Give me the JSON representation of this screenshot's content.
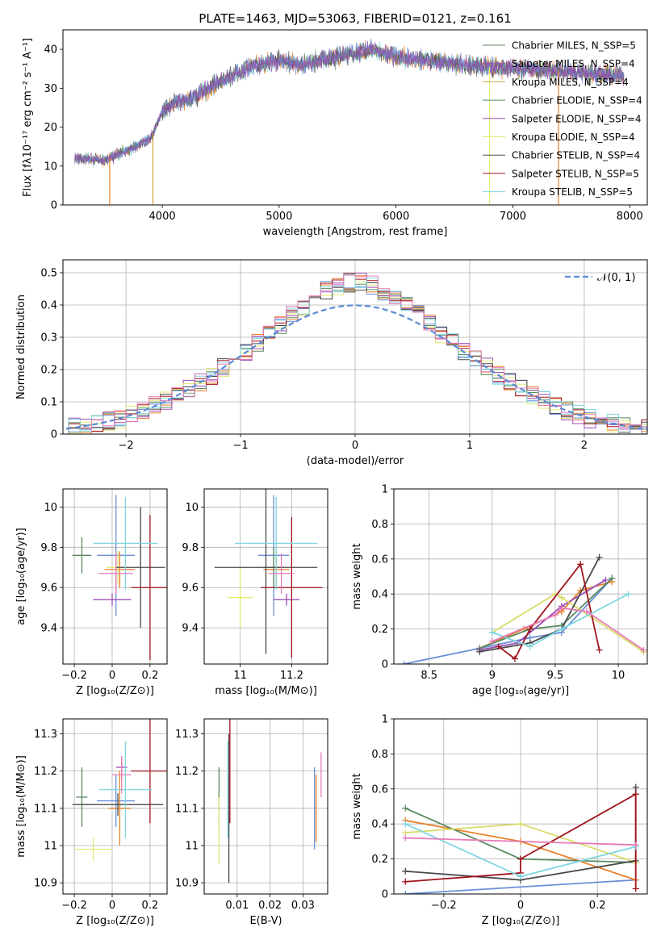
{
  "colors": {
    "blue": "#6a8fd8",
    "orange": "#e8812a",
    "green": "#5b8a61",
    "purple": "#9b4fb5",
    "olive": "#d8dc6a",
    "dark": "#4a4a4a",
    "red": "#a0141e",
    "cyan": "#7fd6e0",
    "pink": "#e57bb6",
    "yellow": "#e3e870"
  },
  "chart_data": [
    {
      "id": "spectrum",
      "type": "line",
      "title": "PLATE=1463, MJD=53063, FIBERID=0121, z=0.161",
      "xlabel": "wavelength [Angstrom, rest frame]",
      "ylabel": "Flux [fλ10⁻¹⁷ erg cm⁻² s⁻¹ A⁻¹]",
      "xlim": [
        3150,
        8150
      ],
      "ylim": [
        0,
        45
      ],
      "xticks": [
        4000,
        5000,
        6000,
        7000,
        8000
      ],
      "yticks": [
        0,
        10,
        20,
        30,
        40
      ],
      "grid": false,
      "legend_position": "top-right",
      "series": [
        {
          "name": "Chabrier MILES, N_SSP=5",
          "color": "#5b8a61"
        },
        {
          "name": "Salpeter MILES, N_SSP=4",
          "color": "#9b4fb5"
        },
        {
          "name": "Kroupa MILES, N_SSP=4",
          "color": "#c9a43a"
        },
        {
          "name": "Chabrier ELODIE, N_SSP=4",
          "color": "#5b8a61"
        },
        {
          "name": "Salpeter ELODIE, N_SSP=4",
          "color": "#9b4fb5"
        },
        {
          "name": "Kroupa ELODIE, N_SSP=4",
          "color": "#e3e870"
        },
        {
          "name": "Chabrier STELIB, N_SSP=4",
          "color": "#4a4a4a"
        },
        {
          "name": "Salpeter STELIB, N_SSP=5",
          "color": "#a0141e"
        },
        {
          "name": "Kroupa STELIB, N_SSP=5",
          "color": "#7fd6e0"
        }
      ],
      "continuum": [
        [
          3250,
          12
        ],
        [
          3500,
          11.5
        ],
        [
          3700,
          14
        ],
        [
          3900,
          17
        ],
        [
          4000,
          24
        ],
        [
          4100,
          26
        ],
        [
          4300,
          28
        ],
        [
          4500,
          32
        ],
        [
          4800,
          36
        ],
        [
          5000,
          37
        ],
        [
          5200,
          36
        ],
        [
          5500,
          38
        ],
        [
          5800,
          40
        ],
        [
          6000,
          38
        ],
        [
          6300,
          37
        ],
        [
          6600,
          36
        ],
        [
          7000,
          35
        ],
        [
          7400,
          34.5
        ],
        [
          7800,
          33.5
        ],
        [
          7950,
          33
        ]
      ],
      "edges": [
        {
          "x": 3550,
          "color": "#e8812a"
        },
        {
          "x": 3920,
          "color": "#c9a43a"
        },
        {
          "x": 6800,
          "color": "#e3e870"
        },
        {
          "x": 7390,
          "color": "#e8812a"
        }
      ]
    },
    {
      "id": "residuals",
      "type": "histogram",
      "xlabel": "(data-model)/error",
      "ylabel": "Normed distribution",
      "xlim": [
        -2.55,
        2.55
      ],
      "ylim": [
        0,
        0.54
      ],
      "xticks": [
        -2,
        -1,
        0,
        1,
        2
      ],
      "yticks": [
        0.0,
        0.1,
        0.2,
        0.3,
        0.4,
        0.5
      ],
      "grid": true,
      "legend_position": "top-right",
      "legend": "𝒩(0, 1)",
      "curve": "normal(0,1)"
    },
    {
      "id": "age_vs_Z",
      "type": "scatter",
      "xlabel": "Z [log₁₀(Z/Z⊙)]",
      "ylabel": "age  [log₁₀(age/yr)]",
      "xlim": [
        -0.26,
        0.29
      ],
      "ylim": [
        9.22,
        10.09
      ],
      "xticks": [
        -0.2,
        0.0,
        0.2
      ],
      "yticks": [
        9.4,
        9.6,
        9.8,
        10.0
      ],
      "grid": true,
      "points": [
        {
          "x": 0.02,
          "y": 9.76,
          "xerr": 0.1,
          "yerr": 0.3,
          "color": "#6a8fd8"
        },
        {
          "x": 0.04,
          "y": 9.69,
          "xerr": 0.08,
          "yerr": 0.09,
          "color": "#e8812a"
        },
        {
          "x": -0.16,
          "y": 9.76,
          "xerr": 0.05,
          "yerr": 0.09,
          "color": "#5b8a61"
        },
        {
          "x": 0.0,
          "y": 9.54,
          "xerr": 0.1,
          "yerr": 0.03,
          "color": "#9b4fb5"
        },
        {
          "x": 0.03,
          "y": 9.7,
          "xerr": 0.06,
          "yerr": 0.08,
          "color": "#e3e870"
        },
        {
          "x": 0.15,
          "y": 9.7,
          "xerr": 0.13,
          "yerr": 0.3,
          "color": "#4a4a4a"
        },
        {
          "x": 0.2,
          "y": 9.6,
          "xerr": 0.1,
          "yerr": 0.36,
          "color": "#a0141e"
        },
        {
          "x": 0.07,
          "y": 9.82,
          "xerr": 0.17,
          "yerr": 0.23,
          "color": "#7fd6e0"
        },
        {
          "x": 0.02,
          "y": 9.67,
          "xerr": 0.09,
          "yerr": 0.1,
          "color": "#e57bb6"
        }
      ]
    },
    {
      "id": "age_vs_mass",
      "type": "scatter",
      "xlabel": "mass [log₁₀(M/M⊙)]",
      "ylabel": "",
      "xlim": [
        10.86,
        11.34
      ],
      "ylim": [
        9.22,
        10.09
      ],
      "xticks": [
        11.0,
        11.2
      ],
      "yticks": [
        9.4,
        9.6,
        9.8,
        10.0
      ],
      "grid": true,
      "points": [
        {
          "x": 11.13,
          "y": 9.76,
          "xerr": 0.06,
          "yerr": 0.3,
          "color": "#6a8fd8"
        },
        {
          "x": 11.14,
          "y": 9.69,
          "xerr": 0.05,
          "yerr": 0.09,
          "color": "#e8812a"
        },
        {
          "x": 11.13,
          "y": 9.7,
          "xerr": 0.04,
          "yerr": 0.1,
          "color": "#5b8a61"
        },
        {
          "x": 11.18,
          "y": 9.54,
          "xerr": 0.05,
          "yerr": 0.03,
          "color": "#9b4fb5"
        },
        {
          "x": 11.0,
          "y": 9.55,
          "xerr": 0.05,
          "yerr": 0.15,
          "color": "#e3e870"
        },
        {
          "x": 11.1,
          "y": 9.7,
          "xerr": 0.2,
          "yerr": 0.43,
          "color": "#4a4a4a"
        },
        {
          "x": 11.2,
          "y": 9.6,
          "xerr": 0.12,
          "yerr": 0.35,
          "color": "#a0141e"
        },
        {
          "x": 11.14,
          "y": 9.82,
          "xerr": 0.16,
          "yerr": 0.23,
          "color": "#7fd6e0"
        },
        {
          "x": 11.16,
          "y": 9.67,
          "xerr": 0.05,
          "yerr": 0.1,
          "color": "#e57bb6"
        }
      ]
    },
    {
      "id": "massweight_vs_age",
      "type": "line",
      "xlabel": "age  [log₁₀(age/yr)]",
      "ylabel": "mass weight",
      "xlim": [
        8.22,
        10.23
      ],
      "ylim": [
        0,
        1
      ],
      "xticks": [
        8.5,
        9.0,
        9.5,
        10.0
      ],
      "yticks": [
        0.0,
        0.2,
        0.4,
        0.6,
        0.8,
        1.0
      ],
      "grid": true,
      "series": [
        {
          "color": "#6a8fd8",
          "x": [
            8.3,
            8.9,
            9.3,
            9.55,
            9.95
          ],
          "y": [
            0.0,
            0.09,
            0.15,
            0.18,
            0.49
          ]
        },
        {
          "color": "#e8812a",
          "x": [
            8.9,
            9.25,
            9.55,
            9.7,
            9.95
          ],
          "y": [
            0.09,
            0.2,
            0.3,
            0.42,
            0.47
          ]
        },
        {
          "color": "#5b8a61",
          "x": [
            8.9,
            9.3,
            9.55,
            9.95
          ],
          "y": [
            0.09,
            0.2,
            0.22,
            0.49
          ]
        },
        {
          "color": "#9b4fb5",
          "x": [
            8.9,
            9.2,
            9.55,
            9.9
          ],
          "y": [
            0.08,
            0.12,
            0.33,
            0.48
          ]
        },
        {
          "color": "#d8dc6a",
          "x": [
            9.0,
            9.5,
            9.55,
            10.2
          ],
          "y": [
            0.18,
            0.4,
            0.38,
            0.07
          ]
        },
        {
          "color": "#4a4a4a",
          "x": [
            8.9,
            9.3,
            9.55,
            9.85
          ],
          "y": [
            0.07,
            0.12,
            0.2,
            0.61
          ]
        },
        {
          "color": "#a0141e",
          "x": [
            9.05,
            9.18,
            9.3,
            9.7,
            9.85
          ],
          "y": [
            0.1,
            0.03,
            0.2,
            0.57,
            0.08
          ]
        },
        {
          "color": "#7fd6e0",
          "x": [
            9.0,
            9.3,
            9.55,
            10.08
          ],
          "y": [
            0.18,
            0.1,
            0.2,
            0.4
          ]
        },
        {
          "color": "#e57bb6",
          "x": [
            9.0,
            9.5,
            9.55,
            9.75,
            10.2
          ],
          "y": [
            0.13,
            0.28,
            0.32,
            0.3,
            0.08
          ]
        }
      ]
    },
    {
      "id": "mass_vs_Z",
      "type": "scatter",
      "xlabel": "Z [log₁₀(Z/Z⊙)]",
      "ylabel": "mass [log₁₀(M/M⊙)]",
      "xlim": [
        -0.26,
        0.29
      ],
      "ylim": [
        10.87,
        11.34
      ],
      "xticks": [
        -0.2,
        0.0,
        0.2
      ],
      "yticks": [
        10.9,
        11.0,
        11.1,
        11.2,
        11.3
      ],
      "grid": true,
      "points": [
        {
          "x": 0.02,
          "y": 11.12,
          "xerr": 0.1,
          "yerr": 0.07,
          "color": "#6a8fd8"
        },
        {
          "x": 0.04,
          "y": 11.1,
          "xerr": 0.06,
          "yerr": 0.1,
          "color": "#e8812a"
        },
        {
          "x": -0.16,
          "y": 11.13,
          "xerr": 0.03,
          "yerr": 0.08,
          "color": "#5b8a61"
        },
        {
          "x": 0.05,
          "y": 11.21,
          "xerr": 0.03,
          "yerr": 0.03,
          "color": "#9b4fb5"
        },
        {
          "x": -0.1,
          "y": 10.99,
          "xerr": 0.1,
          "yerr": 0.03,
          "color": "#e3e870"
        },
        {
          "x": 0.03,
          "y": 11.11,
          "xerr": 0.24,
          "yerr": 0.03,
          "color": "#4a4a4a"
        },
        {
          "x": 0.2,
          "y": 11.2,
          "xerr": 0.1,
          "yerr": 0.14,
          "color": "#a0141e"
        },
        {
          "x": 0.07,
          "y": 11.15,
          "xerr": 0.14,
          "yerr": 0.13,
          "color": "#7fd6e0"
        },
        {
          "x": 0.05,
          "y": 11.19,
          "xerr": 0.05,
          "yerr": 0.05,
          "color": "#e57bb6"
        }
      ]
    },
    {
      "id": "mass_vs_EBV",
      "type": "scatter",
      "xlabel": "E(B-V)",
      "ylabel": "",
      "xlim": [
        0.0,
        0.0375
      ],
      "ylim": [
        10.87,
        11.34
      ],
      "xticks": [
        0.01,
        0.02,
        0.03
      ],
      "yticks": [
        10.9,
        11.0,
        11.1,
        11.2,
        11.3
      ],
      "grid": true,
      "points": [
        {
          "x": 0.0335,
          "y": 11.1,
          "xerr": 0,
          "yerr": 0.11,
          "color": "#6a8fd8"
        },
        {
          "x": 0.034,
          "y": 11.1,
          "xerr": 0,
          "yerr": 0.09,
          "color": "#e8812a"
        },
        {
          "x": 0.0045,
          "y": 11.13,
          "xerr": 0,
          "yerr": 0.08,
          "color": "#5b8a61"
        },
        {
          "x": 0.0355,
          "y": 11.19,
          "xerr": 0,
          "yerr": 0.06,
          "color": "#e57bb6"
        },
        {
          "x": 0.0045,
          "y": 11.04,
          "xerr": 0,
          "yerr": 0.09,
          "color": "#e3e870"
        },
        {
          "x": 0.0075,
          "y": 11.1,
          "xerr": 0,
          "yerr": 0.2,
          "color": "#4a4a4a"
        },
        {
          "x": 0.0078,
          "y": 11.2,
          "xerr": 0,
          "yerr": 0.14,
          "color": "#a0141e"
        },
        {
          "x": 0.0072,
          "y": 11.15,
          "xerr": 0,
          "yerr": 0.13,
          "color": "#7fd6e0"
        }
      ]
    },
    {
      "id": "massweight_vs_Z",
      "type": "line",
      "xlabel": "Z [log₁₀(Z/Z⊙)]",
      "ylabel": "mass weight",
      "xlim": [
        -0.33,
        0.33
      ],
      "ylim": [
        0,
        1
      ],
      "xticks": [
        -0.2,
        0.0,
        0.2
      ],
      "yticks": [
        0.0,
        0.2,
        0.4,
        0.6,
        0.8,
        1.0
      ],
      "grid": true,
      "series": [
        {
          "color": "#6a8fd8",
          "x": [
            -0.3,
            0.3
          ],
          "y": [
            0.0,
            0.08
          ]
        },
        {
          "color": "#e8812a",
          "x": [
            -0.3,
            0.0,
            0.3
          ],
          "y": [
            0.42,
            0.3,
            0.08
          ]
        },
        {
          "color": "#5b8a61",
          "x": [
            -0.3,
            0.0,
            0.3
          ],
          "y": [
            0.49,
            0.2,
            0.18
          ]
        },
        {
          "color": "#d8dc6a",
          "x": [
            -0.3,
            0.0,
            0.3
          ],
          "y": [
            0.35,
            0.4,
            0.18
          ]
        },
        {
          "color": "#4a4a4a",
          "x": [
            -0.3,
            0.0,
            0.3,
            0.3
          ],
          "y": [
            0.13,
            0.08,
            0.19,
            0.61
          ]
        },
        {
          "color": "#a0141e",
          "x": [
            -0.3,
            0.0,
            0.0,
            0.3,
            0.3
          ],
          "y": [
            0.07,
            0.12,
            0.2,
            0.57,
            0.03
          ]
        },
        {
          "color": "#7fd6e0",
          "x": [
            -0.3,
            0.0,
            0.3
          ],
          "y": [
            0.4,
            0.1,
            0.27
          ]
        },
        {
          "color": "#e57bb6",
          "x": [
            -0.3,
            0.3
          ],
          "y": [
            0.32,
            0.28
          ]
        }
      ]
    }
  ]
}
